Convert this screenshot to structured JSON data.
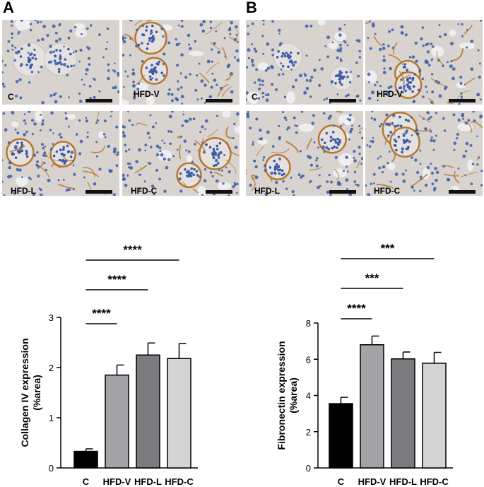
{
  "panels": {
    "a_label": "A",
    "b_label": "B",
    "a_images": [
      "C",
      "HFD-V",
      "HFD-L",
      "HFD-C"
    ],
    "b_images": [
      "C",
      "HFD-V",
      "HFD-L",
      "HFD-C"
    ]
  },
  "colors": {
    "tissue_bg": "#d8d3cf",
    "nuclei": "#3b5aa8",
    "stain": "#b5782e",
    "bar_C": "#000000",
    "bar_HFD_V": "#a2a2a7",
    "bar_HFD_L": "#7a7a7e",
    "bar_HFD_C": "#d4d4d6"
  },
  "chart_data": [
    {
      "type": "bar",
      "categories": [
        "C",
        "HFD-V",
        "HFD-L",
        "HFD-C"
      ],
      "values": [
        0.33,
        1.85,
        2.25,
        2.18
      ],
      "errors": [
        0.05,
        0.2,
        0.24,
        0.3
      ],
      "ylabel_line1": "Collagen IV expression",
      "ylabel_line2": "(%area)",
      "ylim": [
        0,
        3
      ],
      "yticks": [
        0,
        1,
        2,
        3
      ],
      "significance": [
        {
          "from": "C",
          "to": "HFD-V",
          "label": "****"
        },
        {
          "from": "C",
          "to": "HFD-L",
          "label": "****"
        },
        {
          "from": "C",
          "to": "HFD-C",
          "label": "****"
        }
      ]
    },
    {
      "type": "bar",
      "categories": [
        "C",
        "HFD-V",
        "HFD-L",
        "HFD-C"
      ],
      "values": [
        3.55,
        6.8,
        6.02,
        5.78
      ],
      "errors": [
        0.35,
        0.48,
        0.38,
        0.6
      ],
      "ylabel_line1": "Fibronectin expression",
      "ylabel_line2": "(%area)",
      "ylim": [
        0,
        8
      ],
      "yticks": [
        0,
        2,
        4,
        6,
        8
      ],
      "significance": [
        {
          "from": "C",
          "to": "HFD-V",
          "label": "****"
        },
        {
          "from": "C",
          "to": "HFD-L",
          "label": "***"
        },
        {
          "from": "C",
          "to": "HFD-C",
          "label": "***"
        }
      ]
    }
  ]
}
